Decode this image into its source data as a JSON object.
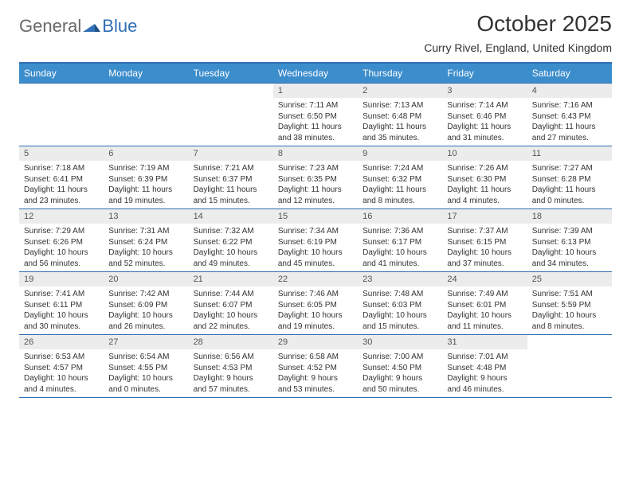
{
  "brand": {
    "part1": "General",
    "part2": "Blue"
  },
  "colors": {
    "accent": "#2f6fb3",
    "header_bg": "#3c8dcc",
    "date_bg": "#ececec",
    "text": "#333333",
    "logo_gray": "#6a6a6a"
  },
  "title": "October 2025",
  "location": "Curry Rivel, England, United Kingdom",
  "day_names": [
    "Sunday",
    "Monday",
    "Tuesday",
    "Wednesday",
    "Thursday",
    "Friday",
    "Saturday"
  ],
  "weeks": [
    [
      {
        "empty": true
      },
      {
        "empty": true
      },
      {
        "empty": true
      },
      {
        "date": "1",
        "sunrise": "Sunrise: 7:11 AM",
        "sunset": "Sunset: 6:50 PM",
        "daylight": "Daylight: 11 hours and 38 minutes."
      },
      {
        "date": "2",
        "sunrise": "Sunrise: 7:13 AM",
        "sunset": "Sunset: 6:48 PM",
        "daylight": "Daylight: 11 hours and 35 minutes."
      },
      {
        "date": "3",
        "sunrise": "Sunrise: 7:14 AM",
        "sunset": "Sunset: 6:46 PM",
        "daylight": "Daylight: 11 hours and 31 minutes."
      },
      {
        "date": "4",
        "sunrise": "Sunrise: 7:16 AM",
        "sunset": "Sunset: 6:43 PM",
        "daylight": "Daylight: 11 hours and 27 minutes."
      }
    ],
    [
      {
        "date": "5",
        "sunrise": "Sunrise: 7:18 AM",
        "sunset": "Sunset: 6:41 PM",
        "daylight": "Daylight: 11 hours and 23 minutes."
      },
      {
        "date": "6",
        "sunrise": "Sunrise: 7:19 AM",
        "sunset": "Sunset: 6:39 PM",
        "daylight": "Daylight: 11 hours and 19 minutes."
      },
      {
        "date": "7",
        "sunrise": "Sunrise: 7:21 AM",
        "sunset": "Sunset: 6:37 PM",
        "daylight": "Daylight: 11 hours and 15 minutes."
      },
      {
        "date": "8",
        "sunrise": "Sunrise: 7:23 AM",
        "sunset": "Sunset: 6:35 PM",
        "daylight": "Daylight: 11 hours and 12 minutes."
      },
      {
        "date": "9",
        "sunrise": "Sunrise: 7:24 AM",
        "sunset": "Sunset: 6:32 PM",
        "daylight": "Daylight: 11 hours and 8 minutes."
      },
      {
        "date": "10",
        "sunrise": "Sunrise: 7:26 AM",
        "sunset": "Sunset: 6:30 PM",
        "daylight": "Daylight: 11 hours and 4 minutes."
      },
      {
        "date": "11",
        "sunrise": "Sunrise: 7:27 AM",
        "sunset": "Sunset: 6:28 PM",
        "daylight": "Daylight: 11 hours and 0 minutes."
      }
    ],
    [
      {
        "date": "12",
        "sunrise": "Sunrise: 7:29 AM",
        "sunset": "Sunset: 6:26 PM",
        "daylight": "Daylight: 10 hours and 56 minutes."
      },
      {
        "date": "13",
        "sunrise": "Sunrise: 7:31 AM",
        "sunset": "Sunset: 6:24 PM",
        "daylight": "Daylight: 10 hours and 52 minutes."
      },
      {
        "date": "14",
        "sunrise": "Sunrise: 7:32 AM",
        "sunset": "Sunset: 6:22 PM",
        "daylight": "Daylight: 10 hours and 49 minutes."
      },
      {
        "date": "15",
        "sunrise": "Sunrise: 7:34 AM",
        "sunset": "Sunset: 6:19 PM",
        "daylight": "Daylight: 10 hours and 45 minutes."
      },
      {
        "date": "16",
        "sunrise": "Sunrise: 7:36 AM",
        "sunset": "Sunset: 6:17 PM",
        "daylight": "Daylight: 10 hours and 41 minutes."
      },
      {
        "date": "17",
        "sunrise": "Sunrise: 7:37 AM",
        "sunset": "Sunset: 6:15 PM",
        "daylight": "Daylight: 10 hours and 37 minutes."
      },
      {
        "date": "18",
        "sunrise": "Sunrise: 7:39 AM",
        "sunset": "Sunset: 6:13 PM",
        "daylight": "Daylight: 10 hours and 34 minutes."
      }
    ],
    [
      {
        "date": "19",
        "sunrise": "Sunrise: 7:41 AM",
        "sunset": "Sunset: 6:11 PM",
        "daylight": "Daylight: 10 hours and 30 minutes."
      },
      {
        "date": "20",
        "sunrise": "Sunrise: 7:42 AM",
        "sunset": "Sunset: 6:09 PM",
        "daylight": "Daylight: 10 hours and 26 minutes."
      },
      {
        "date": "21",
        "sunrise": "Sunrise: 7:44 AM",
        "sunset": "Sunset: 6:07 PM",
        "daylight": "Daylight: 10 hours and 22 minutes."
      },
      {
        "date": "22",
        "sunrise": "Sunrise: 7:46 AM",
        "sunset": "Sunset: 6:05 PM",
        "daylight": "Daylight: 10 hours and 19 minutes."
      },
      {
        "date": "23",
        "sunrise": "Sunrise: 7:48 AM",
        "sunset": "Sunset: 6:03 PM",
        "daylight": "Daylight: 10 hours and 15 minutes."
      },
      {
        "date": "24",
        "sunrise": "Sunrise: 7:49 AM",
        "sunset": "Sunset: 6:01 PM",
        "daylight": "Daylight: 10 hours and 11 minutes."
      },
      {
        "date": "25",
        "sunrise": "Sunrise: 7:51 AM",
        "sunset": "Sunset: 5:59 PM",
        "daylight": "Daylight: 10 hours and 8 minutes."
      }
    ],
    [
      {
        "date": "26",
        "sunrise": "Sunrise: 6:53 AM",
        "sunset": "Sunset: 4:57 PM",
        "daylight": "Daylight: 10 hours and 4 minutes."
      },
      {
        "date": "27",
        "sunrise": "Sunrise: 6:54 AM",
        "sunset": "Sunset: 4:55 PM",
        "daylight": "Daylight: 10 hours and 0 minutes."
      },
      {
        "date": "28",
        "sunrise": "Sunrise: 6:56 AM",
        "sunset": "Sunset: 4:53 PM",
        "daylight": "Daylight: 9 hours and 57 minutes."
      },
      {
        "date": "29",
        "sunrise": "Sunrise: 6:58 AM",
        "sunset": "Sunset: 4:52 PM",
        "daylight": "Daylight: 9 hours and 53 minutes."
      },
      {
        "date": "30",
        "sunrise": "Sunrise: 7:00 AM",
        "sunset": "Sunset: 4:50 PM",
        "daylight": "Daylight: 9 hours and 50 minutes."
      },
      {
        "date": "31",
        "sunrise": "Sunrise: 7:01 AM",
        "sunset": "Sunset: 4:48 PM",
        "daylight": "Daylight: 9 hours and 46 minutes."
      },
      {
        "empty": true
      }
    ]
  ]
}
